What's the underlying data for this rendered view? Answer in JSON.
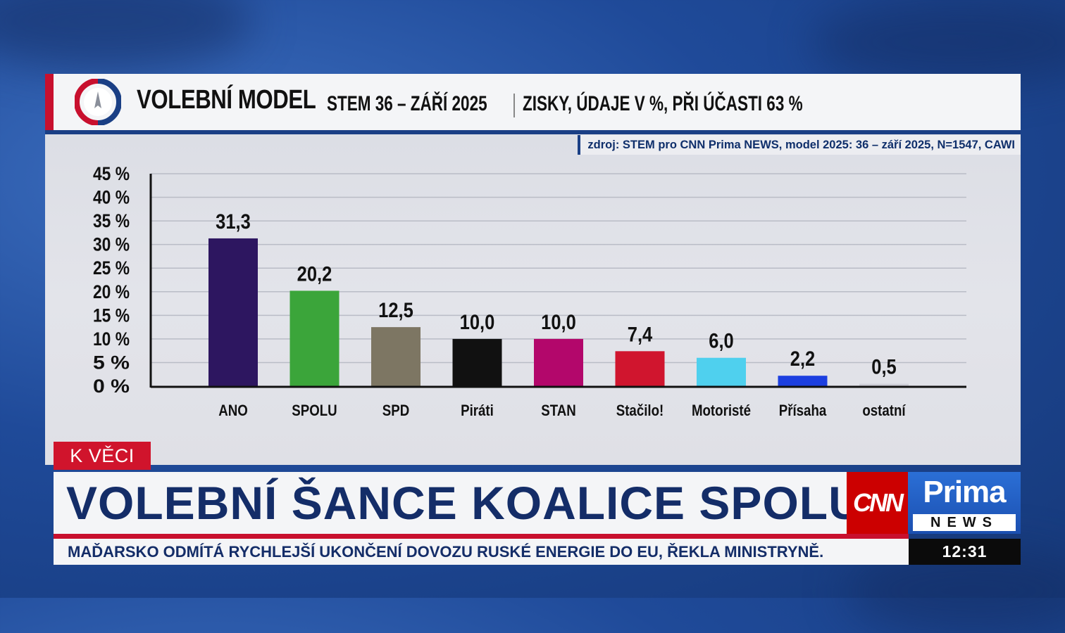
{
  "header": {
    "title": "VOLEBNÍ MODEL",
    "subtitle": "STEM 36 – ZÁŘÍ 2025",
    "details": "ZISKY, ÚDAJE V %, PŘI ÚČASTI 63 %"
  },
  "source": "zdroj: STEM pro CNN Prima NEWS, model 2025: 36 – září 2025, N=1547, CAWI",
  "chart_data": {
    "type": "bar",
    "title": "VOLEBNÍ MODEL",
    "categories": [
      "ANO",
      "SPOLU",
      "SPD",
      "Piráti",
      "STAN",
      "Stačilo!",
      "Motoristé",
      "Přísaha",
      "ostatní"
    ],
    "values": [
      31.3,
      20.2,
      12.5,
      10.0,
      10.0,
      7.4,
      6.0,
      2.2,
      0.5
    ],
    "value_labels": [
      "31,3",
      "20,2",
      "12,5",
      "10,0",
      "10,0",
      "7,4",
      "6,0",
      "2,2",
      "0,5"
    ],
    "colors": [
      "#2d1660",
      "#3ba53a",
      "#7d7663",
      "#111111",
      "#b3076b",
      "#d0152e",
      "#4fd0ee",
      "#1c3fe0",
      "#cfcfd8"
    ],
    "ylim": [
      0,
      45
    ],
    "yticks": [
      0,
      5,
      10,
      15,
      20,
      25,
      30,
      35,
      40,
      45
    ],
    "ytick_labels": [
      "0 %",
      "5 %",
      "10 %",
      "15 %",
      "20 %",
      "25 %",
      "30 %",
      "35 %",
      "40 %",
      "45 %"
    ],
    "grid": true,
    "xlabel": "",
    "ylabel": ""
  },
  "lower_third": {
    "tag": "K VĚCI",
    "headline": "VOLEBNÍ ŠANCE KOALICE SPOLU",
    "ticker": "MAĎARSKO ODMÍTÁ RYCHLEJŠÍ UKONČENÍ DOVOZU RUSKÉ ENERGIE DO EU, ŘEKLA MINISTRYNĚ.",
    "clock": "12:31"
  },
  "branding": {
    "cnn": "CNN",
    "prima": "Prima",
    "news": "NEWS"
  }
}
